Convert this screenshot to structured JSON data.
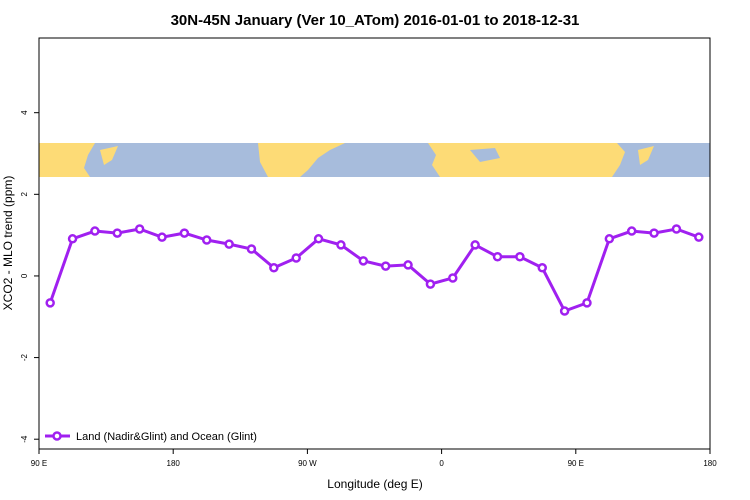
{
  "chart_data": {
    "type": "line",
    "title": "30N-45N January (Ver 10_ATom)   2016-01-01 to 2018-12-31",
    "x_label": "Longitude (deg E)",
    "y_label": "XCO2 - MLO trend (ppm)",
    "x": [
      97.5,
      112.5,
      127.5,
      142.5,
      157.5,
      172.5,
      187.5,
      202.5,
      217.5,
      232.5,
      247.5,
      262.5,
      277.5,
      292.5,
      307.5,
      322.5,
      337.5,
      352.5,
      367.5,
      382.5,
      397.5,
      412.5,
      427.5,
      442.5,
      457.5,
      472.5,
      487.5,
      502.5,
      517.5,
      532.5
    ],
    "series": [
      {
        "name": "Land (Nadir&Glint) and Ocean (Glint)",
        "color": "#a020f0",
        "values": [
          -0.66,
          0.91,
          1.1,
          1.05,
          1.15,
          0.95,
          1.05,
          0.88,
          0.78,
          0.66,
          0.2,
          0.44,
          0.91,
          0.76,
          0.37,
          0.24,
          0.27,
          -0.2,
          -0.05,
          0.76,
          0.47,
          0.47,
          0.2,
          -0.86,
          -0.66,
          0.91,
          1.1,
          1.05,
          1.15,
          0.95
        ]
      }
    ],
    "xlim": [
      90,
      540
    ],
    "xticks": [
      {
        "value": 90,
        "label": "90 E"
      },
      {
        "value": 180,
        "label": "180"
      },
      {
        "value": 270,
        "label": "90 W"
      },
      {
        "value": 360,
        "label": "0"
      },
      {
        "value": 450,
        "label": "90 E"
      },
      {
        "value": 540,
        "label": "180"
      }
    ],
    "ylim": [
      -4.24,
      5.83
    ],
    "yticks": [
      -4,
      -2,
      0,
      2,
      4
    ],
    "legend": "bottom-left"
  }
}
